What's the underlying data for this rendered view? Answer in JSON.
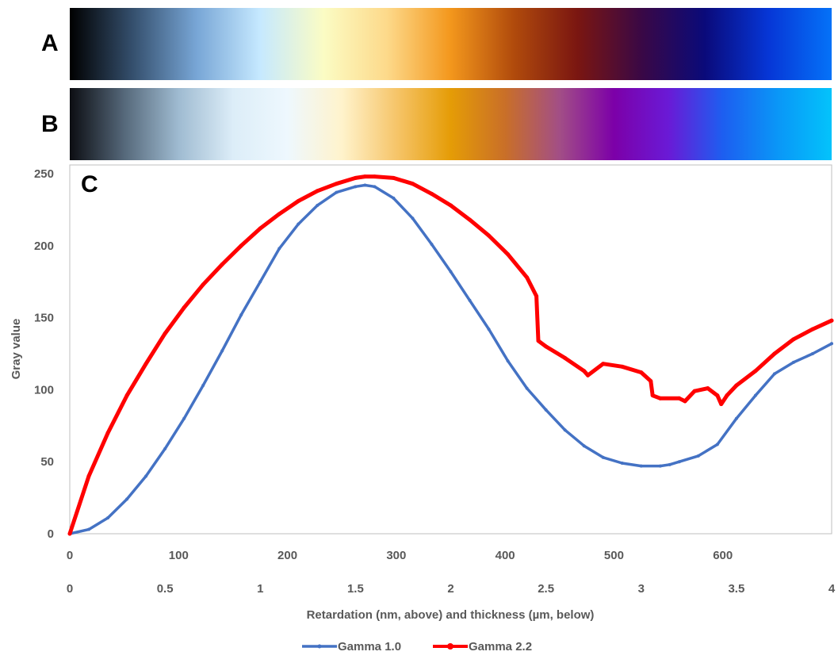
{
  "panels": {
    "a_label": "A",
    "b_label": "B",
    "c_label": "C"
  },
  "colormap_a": {
    "stops": [
      "#000000",
      "#35506e",
      "#78a6d6",
      "#c6e9ff",
      "#fbfcc4",
      "#fdd98a",
      "#f3971c",
      "#b04a0c",
      "#7a1611",
      "#3a0845",
      "#0a0a7a",
      "#0636d6",
      "#0572f8"
    ]
  },
  "colormap_b": {
    "stops": [
      "#0c0d12",
      "#55687a",
      "#9fbbd1",
      "#dcedf8",
      "#eef8fe",
      "#fff3cc",
      "#f6c56a",
      "#e59c06",
      "#c96f28",
      "#a24e86",
      "#7c00a8",
      "#6a1ad6",
      "#1d5ef0",
      "#0a96f7",
      "#03c3fb"
    ]
  },
  "chart_data": {
    "type": "line",
    "xlabel": "Retardation (nm, above) and thickness (µm, below)",
    "ylabel": "Gray value",
    "xlim": [
      0,
      4
    ],
    "ylim": [
      0,
      250
    ],
    "y_ticks": [
      0,
      50,
      100,
      150,
      200,
      250
    ],
    "x_ticks_top": [
      0,
      100,
      200,
      300,
      400,
      500,
      600
    ],
    "x_ticks_bottom": [
      "0",
      "0.5",
      "1",
      "1.5",
      "2",
      "2.5",
      "3",
      "3.5",
      "4"
    ],
    "legend_position": "bottom",
    "grid": false,
    "series": [
      {
        "name": "Gamma 1.0",
        "color": "#4472c4",
        "x": [
          0,
          0.1,
          0.2,
          0.3,
          0.4,
          0.5,
          0.6,
          0.7,
          0.8,
          0.9,
          1.0,
          1.1,
          1.2,
          1.3,
          1.4,
          1.5,
          1.55,
          1.6,
          1.7,
          1.8,
          1.9,
          2.0,
          2.1,
          2.2,
          2.3,
          2.4,
          2.5,
          2.6,
          2.7,
          2.8,
          2.9,
          3.0,
          3.1,
          3.15,
          3.2,
          3.3,
          3.4,
          3.5,
          3.6,
          3.7,
          3.8,
          3.9,
          4.0
        ],
        "y": [
          0,
          3,
          11,
          24,
          40,
          59,
          80,
          103,
          127,
          152,
          175,
          198,
          215,
          228,
          237,
          241,
          242,
          241,
          233,
          219,
          201,
          182,
          162,
          142,
          120,
          101,
          86,
          72,
          61,
          53,
          49,
          47,
          47,
          48,
          50,
          54,
          62,
          80,
          96,
          111,
          119,
          125,
          132
        ]
      },
      {
        "name": "Gamma 2.2",
        "color": "#ff0000",
        "x": [
          0,
          0.1,
          0.2,
          0.3,
          0.4,
          0.5,
          0.6,
          0.7,
          0.8,
          0.9,
          1.0,
          1.1,
          1.2,
          1.3,
          1.4,
          1.5,
          1.55,
          1.6,
          1.7,
          1.8,
          1.9,
          2.0,
          2.1,
          2.2,
          2.3,
          2.4,
          2.45,
          2.46,
          2.5,
          2.6,
          2.7,
          2.72,
          2.8,
          2.9,
          3.0,
          3.05,
          3.06,
          3.1,
          3.2,
          3.23,
          3.28,
          3.35,
          3.4,
          3.42,
          3.45,
          3.5,
          3.6,
          3.7,
          3.8,
          3.9,
          4.0
        ],
        "y": [
          0,
          40,
          70,
          96,
          118,
          139,
          157,
          173,
          187,
          200,
          212,
          222,
          231,
          238,
          243,
          247,
          248,
          248,
          247,
          243,
          236,
          228,
          218,
          207,
          194,
          178,
          165,
          134,
          130,
          122,
          113,
          110,
          118,
          116,
          112,
          106,
          96,
          94,
          94,
          92,
          99,
          101,
          96,
          90,
          96,
          103,
          113,
          125,
          135,
          142,
          148
        ]
      }
    ]
  }
}
